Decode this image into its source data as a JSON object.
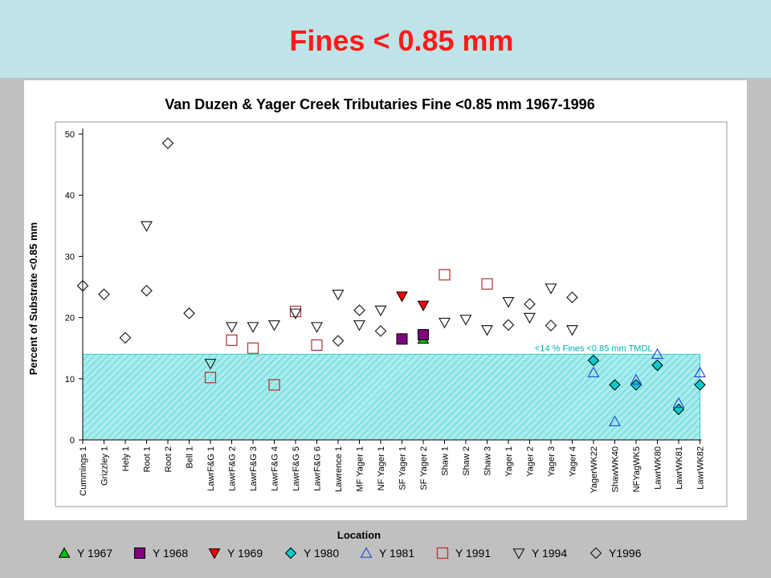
{
  "slide": {
    "title": "Fines < 0.85 mm"
  },
  "colors": {
    "header_bg": "#bfe3e6",
    "slide_bg": "#c0c0c0",
    "title": "#ff1a1a",
    "tmdl": "#33cccc"
  },
  "chart_data": {
    "type": "scatter",
    "title": "Van Duzen & Yager Creek Tributaries Fine <0.85 mm 1967-1996",
    "xlabel": "Location",
    "ylabel": "Percent of Substrate <0.85 mm",
    "ylim": [
      0,
      50
    ],
    "yticks": [
      0,
      10,
      20,
      30,
      40,
      50
    ],
    "grid": false,
    "legend_position": "bottom",
    "categories": [
      "Cummings 1",
      "Grizzley 1",
      "Hely 1",
      "Root 1",
      "Root 2",
      "Bell 1",
      "LawrF&G 1",
      "LawrF&G 2",
      "LawrF&G 3",
      "LawrF&G 4",
      "LawrF&G 5",
      "LawrF&G 6",
      "Lawrence 1",
      "MF Yager 1",
      "NF Yager 1",
      "SF Yager 1",
      "SF Yager 2",
      "Shaw 1",
      "Shaw 2",
      "Shaw 3",
      "Yager 1",
      "Yager 2",
      "Yager 3",
      "Yager 4",
      "YagerWK22",
      "ShawWK40",
      "NFYagWK5",
      "LawrWK80",
      "LawrWK81",
      "LawrWK82"
    ],
    "threshold": {
      "label": "<14 % Fines <0.85 mm TMDL",
      "value": 14
    },
    "series": [
      {
        "name": "Y 1967",
        "marker": "triangle-up",
        "filled": true,
        "color": "#00c000",
        "points": [
          [
            "SF Yager 2",
            16.5
          ]
        ]
      },
      {
        "name": "Y 1968",
        "marker": "square",
        "filled": true,
        "color": "#800080",
        "points": [
          [
            "SF Yager 1",
            16.5
          ],
          [
            "SF Yager 2",
            17.2
          ]
        ]
      },
      {
        "name": "Y 1969",
        "marker": "triangle-down",
        "filled": true,
        "color": "#ff0000",
        "points": [
          [
            "SF Yager 1",
            23.5
          ],
          [
            "SF Yager 2",
            22.0
          ]
        ]
      },
      {
        "name": "Y 1980",
        "marker": "diamond",
        "filled": true,
        "color": "#00cccc",
        "points": [
          [
            "YagerWK22",
            13.0
          ],
          [
            "ShawWK40",
            9.0
          ],
          [
            "NFYagWK5",
            9.0
          ],
          [
            "LawrWK80",
            12.2
          ],
          [
            "LawrWK81",
            5.0
          ],
          [
            "LawrWK82",
            9.0
          ]
        ]
      },
      {
        "name": "Y 1981",
        "marker": "triangle-up",
        "filled": false,
        "color": "#2e4fd6",
        "points": [
          [
            "YagerWK22",
            11.0
          ],
          [
            "ShawWK40",
            3.0
          ],
          [
            "NFYagWK5",
            9.8
          ],
          [
            "LawrWK80",
            14.0
          ],
          [
            "LawrWK81",
            6.0
          ],
          [
            "LawrWK82",
            11.0
          ]
        ]
      },
      {
        "name": "Y 1991",
        "marker": "square",
        "filled": false,
        "color": "#b03030",
        "points": [
          [
            "LawrF&G 1",
            10.2
          ],
          [
            "LawrF&G 2",
            16.3
          ],
          [
            "LawrF&G 3",
            15.0
          ],
          [
            "LawrF&G 4",
            9.0
          ],
          [
            "LawrF&G 5",
            21.0
          ],
          [
            "LawrF&G 6",
            15.5
          ],
          [
            "Shaw 1",
            27.0
          ],
          [
            "Shaw 3",
            25.5
          ]
        ]
      },
      {
        "name": "Y 1994",
        "marker": "triangle-down",
        "filled": false,
        "color": "#222222",
        "points": [
          [
            "Root 1",
            35.0
          ],
          [
            "LawrF&G 1",
            12.5
          ],
          [
            "LawrF&G 2",
            18.5
          ],
          [
            "LawrF&G 3",
            18.5
          ],
          [
            "LawrF&G 4",
            18.8
          ],
          [
            "LawrF&G 5",
            20.7
          ],
          [
            "LawrF&G 6",
            18.5
          ],
          [
            "Lawrence 1",
            23.8
          ],
          [
            "MF Yager 1",
            18.8
          ],
          [
            "NF Yager 1",
            21.2
          ],
          [
            "Shaw 1",
            19.2
          ],
          [
            "Shaw 2",
            19.7
          ],
          [
            "Shaw 3",
            18.0
          ],
          [
            "Yager 1",
            22.6
          ],
          [
            "Yager 2",
            20.0
          ],
          [
            "Yager 3",
            24.8
          ],
          [
            "Yager 4",
            18.0
          ]
        ]
      },
      {
        "name": "Y1996",
        "marker": "diamond",
        "filled": false,
        "color": "#222222",
        "points": [
          [
            "Cummings 1",
            25.2
          ],
          [
            "Grizzley 1",
            23.8
          ],
          [
            "Hely 1",
            16.7
          ],
          [
            "Root 1",
            24.4
          ],
          [
            "Root 2",
            48.5
          ],
          [
            "Bell 1",
            20.7
          ],
          [
            "Lawrence 1",
            16.2
          ],
          [
            "MF Yager 1",
            21.2
          ],
          [
            "NF Yager 1",
            17.8
          ],
          [
            "Yager 1",
            18.8
          ],
          [
            "Yager 2",
            22.2
          ],
          [
            "Yager 3",
            18.7
          ],
          [
            "Yager 4",
            23.3
          ]
        ]
      }
    ]
  }
}
